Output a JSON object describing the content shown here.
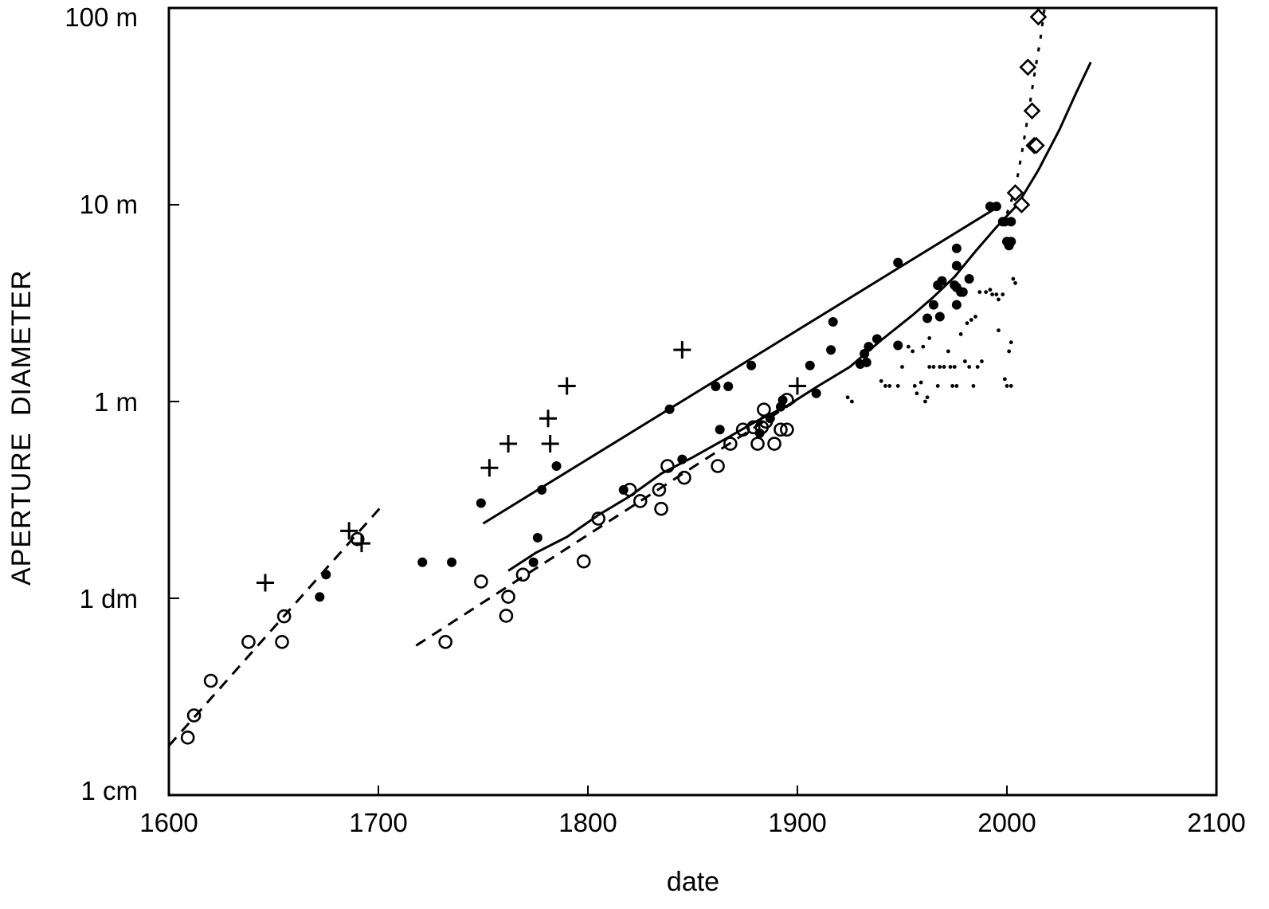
{
  "chart_data": {
    "type": "scatter",
    "title": "",
    "xlabel": "date",
    "ylabel": "APERTURE   DIAMETER",
    "x_scale": "linear",
    "y_scale": "log",
    "xlim": [
      1600,
      2100
    ],
    "ylim_m": [
      0.01,
      100
    ],
    "grid": false,
    "legend": "none",
    "x_ticks": [
      {
        "value": 1600,
        "label": "1600"
      },
      {
        "value": 1700,
        "label": "1700"
      },
      {
        "value": 1800,
        "label": "1800"
      },
      {
        "value": 1900,
        "label": "1900"
      },
      {
        "value": 2000,
        "label": "2000"
      },
      {
        "value": 2100,
        "label": "2100"
      }
    ],
    "y_ticks": [
      {
        "value": 100,
        "label": "100 m"
      },
      {
        "value": 10,
        "label": "10 m"
      },
      {
        "value": 1,
        "label": "1 m"
      },
      {
        "value": 0.1,
        "label": "1 dm"
      },
      {
        "value": 0.01,
        "label": "1 cm"
      }
    ],
    "series": [
      {
        "name": "open circles",
        "marker": "open-circle",
        "points": [
          [
            1609,
            0.0196
          ],
          [
            1612,
            0.0254
          ],
          [
            1620,
            0.0381
          ],
          [
            1638,
            0.06
          ],
          [
            1654,
            0.06
          ],
          [
            1655,
            0.081
          ],
          [
            1690,
            0.2
          ],
          [
            1732,
            0.06
          ],
          [
            1749,
            0.1217
          ],
          [
            1761,
            0.0815
          ],
          [
            1762,
            0.1018
          ],
          [
            1769,
            0.1319
          ],
          [
            1798,
            0.154
          ],
          [
            1805,
            0.254
          ],
          [
            1820,
            0.356
          ],
          [
            1825,
            0.312
          ],
          [
            1834,
            0.356
          ],
          [
            1835,
            0.285
          ],
          [
            1838,
            0.47
          ],
          [
            1846,
            0.41
          ],
          [
            1862,
            0.47
          ],
          [
            1868,
            0.61
          ],
          [
            1874,
            0.72
          ],
          [
            1879,
            0.74
          ],
          [
            1881,
            0.61
          ],
          [
            1883,
            0.74
          ],
          [
            1884,
            0.91
          ],
          [
            1885,
            0.79
          ],
          [
            1889,
            0.61
          ],
          [
            1892,
            0.72
          ],
          [
            1895,
            0.72
          ],
          [
            1895,
            1.02
          ]
        ]
      },
      {
        "name": "filled circles",
        "marker": "filled-circle",
        "points": [
          [
            1672,
            0.1016
          ],
          [
            1675,
            0.132
          ],
          [
            1721,
            0.1524
          ],
          [
            1735,
            0.1524
          ],
          [
            1749,
            0.3048
          ],
          [
            1774,
            0.1524
          ],
          [
            1776,
            0.2032
          ],
          [
            1778,
            0.3556
          ],
          [
            1785,
            0.4699
          ],
          [
            1817,
            0.3556
          ],
          [
            1839,
            0.9144
          ],
          [
            1845,
            0.508
          ],
          [
            1861,
            1.1938
          ],
          [
            1863,
            0.72
          ],
          [
            1867,
            1.1938
          ],
          [
            1878,
            1.524
          ],
          [
            1882,
            0.69
          ],
          [
            1887,
            0.82
          ],
          [
            1892,
            0.94
          ],
          [
            1893,
            1.016
          ],
          [
            1906,
            1.524
          ],
          [
            1909,
            1.1
          ],
          [
            1916,
            1.829
          ],
          [
            1917,
            2.54
          ],
          [
            1930,
            1.55
          ],
          [
            1932,
            1.75
          ],
          [
            1933,
            1.58
          ],
          [
            1934,
            1.9
          ],
          [
            1938,
            2.08
          ],
          [
            1948,
            1.93
          ],
          [
            1948,
            5.08
          ],
          [
            1962,
            2.65
          ],
          [
            1965,
            3.1
          ],
          [
            1967,
            3.9
          ],
          [
            1968,
            2.7
          ],
          [
            1969,
            4.1
          ],
          [
            1975,
            3.9
          ],
          [
            1976,
            3.8
          ],
          [
            1976,
            6.0
          ],
          [
            1976,
            4.9
          ],
          [
            1976,
            3.1
          ],
          [
            1978,
            3.6
          ],
          [
            1979,
            3.6
          ],
          [
            1982,
            4.2
          ],
          [
            1992,
            9.8
          ],
          [
            1995,
            9.8
          ],
          [
            1998,
            8.2
          ],
          [
            1999,
            8.2
          ],
          [
            2000,
            6.5
          ],
          [
            2001,
            6.2
          ],
          [
            2002,
            6.5
          ],
          [
            2002,
            8.2
          ]
        ]
      },
      {
        "name": "small dots",
        "marker": "small-dot",
        "points": [
          [
            1924,
            1.05
          ],
          [
            1926,
            1.0
          ],
          [
            1940,
            1.27
          ],
          [
            1942,
            1.2
          ],
          [
            1944,
            1.2
          ],
          [
            1948,
            1.2
          ],
          [
            1950,
            1.5
          ],
          [
            1953,
            1.9
          ],
          [
            1955,
            1.8
          ],
          [
            1956,
            1.2
          ],
          [
            1957,
            1.1
          ],
          [
            1959,
            1.25
          ],
          [
            1960,
            1.9
          ],
          [
            1961,
            1.0
          ],
          [
            1962,
            1.05
          ],
          [
            1963,
            2.1
          ],
          [
            1963,
            1.5
          ],
          [
            1965,
            1.5
          ],
          [
            1967,
            1.2
          ],
          [
            1968,
            1.5
          ],
          [
            1970,
            1.5
          ],
          [
            1972,
            1.8
          ],
          [
            1973,
            1.5
          ],
          [
            1974,
            1.2
          ],
          [
            1975,
            1.5
          ],
          [
            1976,
            1.2
          ],
          [
            1978,
            2.2
          ],
          [
            1980,
            1.6
          ],
          [
            1981,
            2.5
          ],
          [
            1982,
            1.5
          ],
          [
            1983,
            2.6
          ],
          [
            1984,
            1.2
          ],
          [
            1985,
            2.7
          ],
          [
            1986,
            1.5
          ],
          [
            1987,
            3.6
          ],
          [
            1988,
            1.6
          ],
          [
            1990,
            3.6
          ],
          [
            1992,
            3.7
          ],
          [
            1993,
            3.5
          ],
          [
            1995,
            3.5
          ],
          [
            1996,
            3.3
          ],
          [
            1996,
            2.3
          ],
          [
            1998,
            3.5
          ],
          [
            1999,
            1.3
          ],
          [
            2000,
            1.2
          ],
          [
            2001,
            1.8
          ],
          [
            2002,
            2.0
          ],
          [
            2002,
            1.2
          ],
          [
            2003,
            4.2
          ],
          [
            2004,
            4.0
          ]
        ]
      },
      {
        "name": "plus",
        "marker": "plus",
        "points": [
          [
            1646,
            0.12
          ],
          [
            1686,
            0.22
          ],
          [
            1692,
            0.19
          ],
          [
            1753,
            0.46
          ],
          [
            1762,
            0.61
          ],
          [
            1781,
            0.82
          ],
          [
            1782,
            0.61
          ],
          [
            1790,
            1.2
          ],
          [
            1845,
            1.83
          ],
          [
            1900,
            1.2
          ]
        ]
      },
      {
        "name": "diamonds",
        "marker": "open-diamond",
        "points": [
          [
            2004,
            11.5
          ],
          [
            2007,
            10.0
          ],
          [
            2010,
            50.0
          ],
          [
            2012,
            30.0
          ],
          [
            2013,
            20.0
          ],
          [
            2014,
            20.0
          ],
          [
            2015,
            90.0
          ]
        ]
      }
    ],
    "lines": [
      {
        "name": "early dashed fit",
        "style": "dashed",
        "points": [
          [
            1600,
            0.0178
          ],
          [
            1702,
            0.2975
          ]
        ]
      },
      {
        "name": "18th-20th century dashed fit",
        "style": "dashed",
        "points": [
          [
            1718,
            0.0575
          ],
          [
            1900,
            1.02
          ]
        ]
      },
      {
        "name": "upper solid fit",
        "style": "solid",
        "points": [
          [
            1750,
            0.24
          ],
          [
            1996,
            9.8
          ]
        ]
      },
      {
        "name": "curved solid trend",
        "style": "solid",
        "points": [
          [
            1762,
            0.138
          ],
          [
            1775,
            0.17
          ],
          [
            1790,
            0.205
          ],
          [
            1805,
            0.265
          ],
          [
            1820,
            0.33
          ],
          [
            1835,
            0.43
          ],
          [
            1850,
            0.52
          ],
          [
            1865,
            0.64
          ],
          [
            1880,
            0.79
          ],
          [
            1895,
            0.95
          ],
          [
            1910,
            1.2
          ],
          [
            1925,
            1.5
          ],
          [
            1940,
            2.05
          ],
          [
            1955,
            2.75
          ],
          [
            1965,
            3.4
          ],
          [
            1975,
            4.3
          ],
          [
            1985,
            5.8
          ],
          [
            1995,
            7.7
          ],
          [
            2005,
            10.0
          ],
          [
            2015,
            15.0
          ],
          [
            2025,
            24.0
          ],
          [
            2033,
            37.0
          ],
          [
            2040,
            53.0
          ]
        ]
      },
      {
        "name": "future dotted trend",
        "style": "dotted",
        "points": [
          [
            2000,
            9.0
          ],
          [
            2004,
            12.0
          ],
          [
            2007,
            18.0
          ],
          [
            2010,
            28.0
          ],
          [
            2013,
            45.0
          ],
          [
            2016,
            70.0
          ],
          [
            2018,
            100.0
          ]
        ]
      }
    ]
  }
}
